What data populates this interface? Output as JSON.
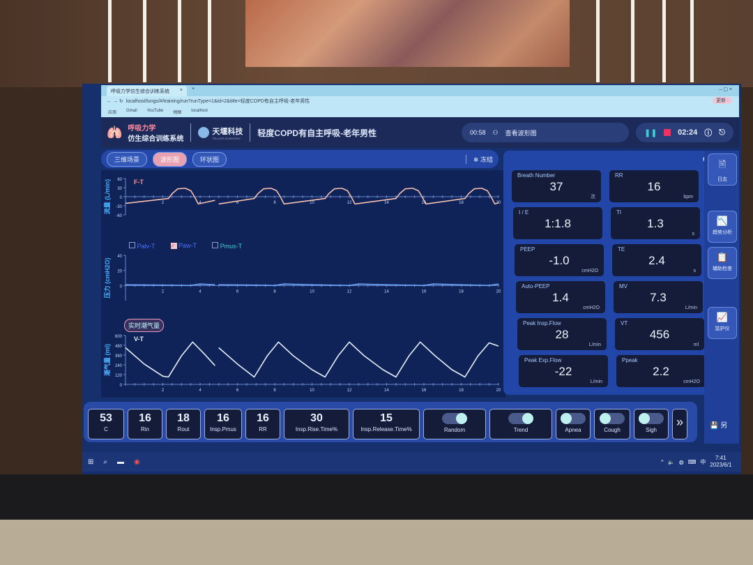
{
  "browser": {
    "tab_title": "呼吸力学仿生综合训练系统",
    "url": "localhost/lungs/#/training/run?runType=1&id=2&title=轻度COPD有自主呼吸-老年男性",
    "bookmarks": [
      "应用",
      "Gmail",
      "YouTube",
      "地图",
      "localhost"
    ],
    "update_label": "更新 :"
  },
  "header": {
    "brand_line1": "呼吸力学",
    "brand_line2": "仿生综合训练系统",
    "company": "天堰科技",
    "company_en": "TELLYES SCIENTIFIC",
    "title": "轻度COPD有自主呼吸-老年男性",
    "elapsed": "00:58",
    "view_label": "查看波形图",
    "timer": "02:24"
  },
  "view_tabs": [
    {
      "label": "三维场景"
    },
    {
      "label": "波形图",
      "active": true
    },
    {
      "label": "环状图"
    }
  ],
  "freeze_label": "冻结",
  "realtime_tv_label": "实时潮气量",
  "pressure_legend": [
    {
      "label": "Palv-T",
      "checked": false
    },
    {
      "label": "Paw-T",
      "checked": true
    },
    {
      "label": "Pmus-T",
      "checked": false
    }
  ],
  "chart_data": [
    {
      "type": "line",
      "title": "F-T",
      "ylabel": "流量 (L/min)",
      "xlim": [
        0,
        20
      ],
      "ylim": [
        -60,
        60
      ],
      "xticks": [
        2,
        4,
        6,
        8,
        10,
        12,
        14,
        16,
        18,
        20
      ],
      "yticks": [
        60,
        30,
        0,
        -30,
        -60
      ],
      "color": "#f4c0b0",
      "segments": [
        [
          [
            0,
            -22
          ],
          [
            2.3,
            -6
          ],
          [
            2.5,
            10
          ],
          [
            2.8,
            26
          ],
          [
            3.2,
            28
          ],
          [
            3.5,
            20
          ],
          [
            3.7,
            0
          ],
          [
            3.9,
            -24
          ],
          [
            4.8,
            -12
          ]
        ],
        [
          [
            5.0,
            -24
          ],
          [
            6.9,
            -6
          ],
          [
            7.1,
            10
          ],
          [
            7.4,
            26
          ],
          [
            7.8,
            28
          ],
          [
            8.1,
            20
          ],
          [
            8.3,
            0
          ],
          [
            8.5,
            -24
          ],
          [
            10.7,
            -6
          ],
          [
            10.9,
            10
          ],
          [
            11.2,
            26
          ],
          [
            11.6,
            28
          ],
          [
            11.9,
            20
          ],
          [
            12.1,
            0
          ],
          [
            12.3,
            -24
          ],
          [
            14.5,
            -6
          ],
          [
            14.7,
            10
          ],
          [
            15.0,
            26
          ],
          [
            15.4,
            28
          ],
          [
            15.7,
            20
          ],
          [
            15.9,
            0
          ],
          [
            16.1,
            -24
          ],
          [
            18.2,
            -6
          ],
          [
            18.4,
            10
          ],
          [
            18.7,
            26
          ],
          [
            19.1,
            28
          ],
          [
            19.4,
            20
          ],
          [
            19.6,
            0
          ],
          [
            19.8,
            -24
          ],
          [
            20,
            -20
          ]
        ]
      ]
    },
    {
      "type": "line",
      "title": "",
      "ylabel": "压力 (cmH2O)",
      "xlim": [
        0,
        20
      ],
      "ylim": [
        -20,
        40
      ],
      "xticks": [
        2,
        4,
        6,
        8,
        10,
        12,
        14,
        16,
        18,
        20
      ],
      "yticks": [
        40,
        20,
        0
      ],
      "color": "#6fa8ff",
      "segments": [
        [
          [
            0,
            1
          ],
          [
            2,
            0.5
          ],
          [
            3.5,
            0
          ],
          [
            4,
            2
          ],
          [
            4.8,
            1
          ]
        ],
        [
          [
            5,
            1
          ],
          [
            7,
            0.5
          ],
          [
            8,
            0
          ],
          [
            8.5,
            2
          ],
          [
            10,
            1
          ],
          [
            12,
            0
          ],
          [
            12.5,
            2
          ],
          [
            14,
            1
          ],
          [
            16,
            0
          ],
          [
            16.5,
            2
          ],
          [
            18,
            1
          ],
          [
            19.5,
            0
          ],
          [
            20,
            2
          ]
        ]
      ]
    },
    {
      "type": "line",
      "title": "V-T",
      "ylabel": "潮气量 (ml)",
      "xlim": [
        0,
        20
      ],
      "ylim": [
        0,
        600
      ],
      "xticks": [
        2,
        4,
        6,
        8,
        10,
        12,
        14,
        16,
        18,
        20
      ],
      "yticks": [
        600,
        480,
        360,
        240,
        120,
        0
      ],
      "color": "#e8f0ff",
      "segments": [
        [
          [
            0,
            450
          ],
          [
            1,
            250
          ],
          [
            2.0,
            100
          ],
          [
            2.3,
            90
          ],
          [
            3.0,
            350
          ],
          [
            3.6,
            520
          ],
          [
            4.2,
            380
          ],
          [
            4.8,
            230
          ]
        ],
        [
          [
            5.0,
            450
          ],
          [
            6.0,
            250
          ],
          [
            6.9,
            90
          ],
          [
            7.6,
            350
          ],
          [
            8.2,
            520
          ],
          [
            9.0,
            350
          ],
          [
            10.0,
            180
          ],
          [
            10.7,
            90
          ],
          [
            11.4,
            350
          ],
          [
            12.0,
            520
          ],
          [
            12.8,
            350
          ],
          [
            13.8,
            180
          ],
          [
            14.5,
            90
          ],
          [
            15.2,
            350
          ],
          [
            15.8,
            520
          ],
          [
            16.6,
            350
          ],
          [
            17.5,
            180
          ],
          [
            18.2,
            90
          ],
          [
            18.9,
            350
          ],
          [
            19.5,
            510
          ],
          [
            20,
            470
          ]
        ]
      ]
    }
  ],
  "metrics": [
    {
      "label": "Breath Number",
      "value": "37",
      "unit": "次"
    },
    {
      "label": "RR",
      "value": "16",
      "unit": "bpm"
    },
    {
      "label": "I / E",
      "value": "1:1.8",
      "unit": ""
    },
    {
      "label": "TI",
      "value": "1.3",
      "unit": "s"
    },
    {
      "label": "PEEP",
      "value": "-1.0",
      "unit": "cmH2O"
    },
    {
      "label": "TE",
      "value": "2.4",
      "unit": "s"
    },
    {
      "label": "Auto-PEEP",
      "value": "1.4",
      "unit": "cmH2O"
    },
    {
      "label": "MV",
      "value": "7.3",
      "unit": "L/min"
    },
    {
      "label": "Peak Insp.Flow",
      "value": "28",
      "unit": "L/min"
    },
    {
      "label": "VT",
      "value": "456",
      "unit": "ml"
    },
    {
      "label": "Peak Exp.Flow",
      "value": "-22",
      "unit": "L/min"
    },
    {
      "label": "Ppeak",
      "value": "2.2",
      "unit": "cmH2O"
    }
  ],
  "sidenav": [
    {
      "label": "日志",
      "icon": "log-icon"
    },
    {
      "label": "趋势分析",
      "icon": "trend-icon"
    },
    {
      "label": "辅助检查",
      "icon": "report-icon"
    },
    {
      "label": "监护仪",
      "icon": "monitor-icon"
    }
  ],
  "save_label": "另",
  "params": [
    {
      "value": "53",
      "label": "C"
    },
    {
      "value": "16",
      "label": "Rin"
    },
    {
      "value": "18",
      "label": "Rout"
    },
    {
      "value": "16",
      "label": "Insp.Pmus"
    },
    {
      "value": "16",
      "label": "RR"
    },
    {
      "value": "30",
      "label": "Insp.Rise.Time%"
    },
    {
      "value": "15",
      "label": "Insp.Release.Time%"
    }
  ],
  "toggles": [
    {
      "label": "Random",
      "on": true
    },
    {
      "label": "Trend",
      "on": true
    },
    {
      "label": "Apnea",
      "on": false
    },
    {
      "label": "Cough",
      "on": false
    },
    {
      "label": "Sigh",
      "on": false
    }
  ],
  "taskbar": {
    "time": "7:41",
    "date": "2023/6/1",
    "ime": "中"
  }
}
